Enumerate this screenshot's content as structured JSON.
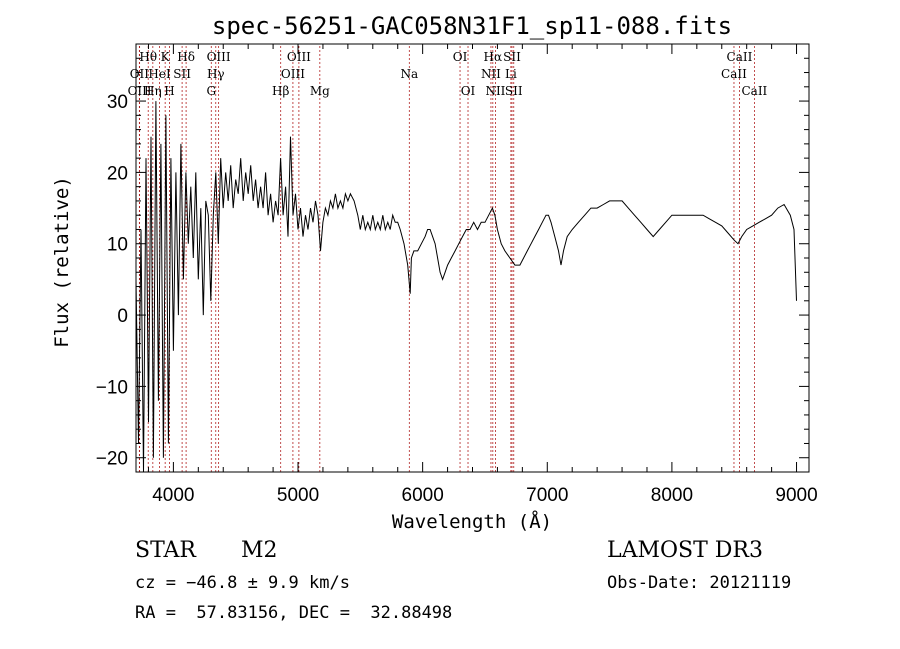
{
  "chart_data": {
    "type": "line",
    "title": "spec-56251-GAC058N31F1_sp11-088.fits",
    "xlabel": "Wavelength (Å)",
    "ylabel": "Flux (relative)",
    "xlim": [
      3700,
      9100
    ],
    "ylim": [
      -22,
      38
    ],
    "xticks": [
      4000,
      5000,
      6000,
      7000,
      8000,
      9000
    ],
    "yticks": [
      -20,
      -10,
      0,
      10,
      20,
      30
    ],
    "line_color": "#000000",
    "marker_color": "#b22222",
    "lines": [
      {
        "label": "Hθ",
        "x": 3798,
        "row": 0
      },
      {
        "label": "OII",
        "x": 3727,
        "row": 1
      },
      {
        "label": "OIII",
        "x": 3729,
        "row": 2
      },
      {
        "label": "K",
        "x": 3934,
        "row": 0
      },
      {
        "label": "HeI",
        "x": 3889,
        "row": 1
      },
      {
        "label": "Hη",
        "x": 3835,
        "row": 2
      },
      {
        "label": "H",
        "x": 3969,
        "row": 2
      },
      {
        "label": "SII",
        "x": 4070,
        "row": 1
      },
      {
        "label": "Hδ",
        "x": 4102,
        "row": 0
      },
      {
        "label": "OIII",
        "x": 4363,
        "row": 0
      },
      {
        "label": "Hγ",
        "x": 4340,
        "row": 1
      },
      {
        "label": "G",
        "x": 4304,
        "row": 2
      },
      {
        "label": "Hβ",
        "x": 4861,
        "row": 2
      },
      {
        "label": "OIII",
        "x": 5007,
        "row": 0
      },
      {
        "label": "OIII",
        "x": 4959,
        "row": 1
      },
      {
        "label": "Mg",
        "x": 5175,
        "row": 2
      },
      {
        "label": "Na",
        "x": 5893,
        "row": 1
      },
      {
        "label": "OI",
        "x": 6300,
        "row": 0
      },
      {
        "label": "OI",
        "x": 6364,
        "row": 2
      },
      {
        "label": "Hα",
        "x": 6563,
        "row": 0
      },
      {
        "label": "NII",
        "x": 6548,
        "row": 1
      },
      {
        "label": "NII",
        "x": 6584,
        "row": 2
      },
      {
        "label": "SII",
        "x": 6717,
        "row": 0
      },
      {
        "label": "Li",
        "x": 6708,
        "row": 1
      },
      {
        "label": "SII",
        "x": 6731,
        "row": 2
      },
      {
        "label": "CaII",
        "x": 8542,
        "row": 0
      },
      {
        "label": "CaII",
        "x": 8498,
        "row": 1
      },
      {
        "label": "CaII",
        "x": 8662,
        "row": 2
      }
    ],
    "spectrum": [
      [
        3700,
        5
      ],
      [
        3720,
        -18
      ],
      [
        3740,
        12
      ],
      [
        3760,
        -22
      ],
      [
        3780,
        22
      ],
      [
        3800,
        -15
      ],
      [
        3820,
        25
      ],
      [
        3840,
        -20
      ],
      [
        3860,
        30
      ],
      [
        3880,
        -12
      ],
      [
        3900,
        24
      ],
      [
        3920,
        -20
      ],
      [
        3940,
        28
      ],
      [
        3960,
        -18
      ],
      [
        3980,
        22
      ],
      [
        4000,
        -5
      ],
      [
        4020,
        20
      ],
      [
        4040,
        0
      ],
      [
        4060,
        24
      ],
      [
        4080,
        5
      ],
      [
        4100,
        20
      ],
      [
        4120,
        10
      ],
      [
        4140,
        18
      ],
      [
        4160,
        8
      ],
      [
        4180,
        20
      ],
      [
        4200,
        5
      ],
      [
        4220,
        15
      ],
      [
        4240,
        0
      ],
      [
        4260,
        16
      ],
      [
        4280,
        14
      ],
      [
        4300,
        2
      ],
      [
        4320,
        14
      ],
      [
        4340,
        20
      ],
      [
        4360,
        10
      ],
      [
        4380,
        22
      ],
      [
        4400,
        15
      ],
      [
        4420,
        20
      ],
      [
        4440,
        16
      ],
      [
        4460,
        21
      ],
      [
        4480,
        15
      ],
      [
        4500,
        19
      ],
      [
        4520,
        17
      ],
      [
        4540,
        22
      ],
      [
        4560,
        16
      ],
      [
        4580,
        20
      ],
      [
        4600,
        17
      ],
      [
        4620,
        21
      ],
      [
        4640,
        16
      ],
      [
        4660,
        19
      ],
      [
        4680,
        15
      ],
      [
        4700,
        18
      ],
      [
        4720,
        15
      ],
      [
        4740,
        20
      ],
      [
        4760,
        14
      ],
      [
        4780,
        17
      ],
      [
        4800,
        13
      ],
      [
        4820,
        16
      ],
      [
        4840,
        14
      ],
      [
        4860,
        22
      ],
      [
        4880,
        14
      ],
      [
        4900,
        18
      ],
      [
        4920,
        11
      ],
      [
        4940,
        25
      ],
      [
        4960,
        14
      ],
      [
        4980,
        17
      ],
      [
        5000,
        12
      ],
      [
        5020,
        15
      ],
      [
        5040,
        11
      ],
      [
        5060,
        14
      ],
      [
        5080,
        12
      ],
      [
        5100,
        15
      ],
      [
        5120,
        13
      ],
      [
        5140,
        16
      ],
      [
        5160,
        14
      ],
      [
        5180,
        9
      ],
      [
        5200,
        13
      ],
      [
        5220,
        15
      ],
      [
        5240,
        14
      ],
      [
        5260,
        16
      ],
      [
        5280,
        15
      ],
      [
        5300,
        17
      ],
      [
        5320,
        15
      ],
      [
        5340,
        16
      ],
      [
        5360,
        15
      ],
      [
        5380,
        17
      ],
      [
        5400,
        16
      ],
      [
        5420,
        17
      ],
      [
        5450,
        16
      ],
      [
        5480,
        14
      ],
      [
        5500,
        12
      ],
      [
        5520,
        14
      ],
      [
        5540,
        12
      ],
      [
        5560,
        13
      ],
      [
        5580,
        12
      ],
      [
        5600,
        14
      ],
      [
        5620,
        12
      ],
      [
        5640,
        13
      ],
      [
        5660,
        12
      ],
      [
        5680,
        14
      ],
      [
        5700,
        12
      ],
      [
        5720,
        13
      ],
      [
        5740,
        12
      ],
      [
        5760,
        14
      ],
      [
        5780,
        13
      ],
      [
        5800,
        13
      ],
      [
        5820,
        12
      ],
      [
        5850,
        10
      ],
      [
        5880,
        7
      ],
      [
        5900,
        3
      ],
      [
        5910,
        8
      ],
      [
        5930,
        9
      ],
      [
        5960,
        9
      ],
      [
        5990,
        10
      ],
      [
        6020,
        11
      ],
      [
        6040,
        12
      ],
      [
        6060,
        12
      ],
      [
        6080,
        11
      ],
      [
        6100,
        10
      ],
      [
        6120,
        8
      ],
      [
        6140,
        6
      ],
      [
        6160,
        5
      ],
      [
        6180,
        6
      ],
      [
        6200,
        7
      ],
      [
        6230,
        8
      ],
      [
        6260,
        9
      ],
      [
        6290,
        10
      ],
      [
        6320,
        11
      ],
      [
        6350,
        12
      ],
      [
        6380,
        12
      ],
      [
        6410,
        13
      ],
      [
        6440,
        12
      ],
      [
        6470,
        13
      ],
      [
        6500,
        13
      ],
      [
        6530,
        14
      ],
      [
        6560,
        15
      ],
      [
        6580,
        14
      ],
      [
        6600,
        12
      ],
      [
        6630,
        10
      ],
      [
        6660,
        9
      ],
      [
        6700,
        8
      ],
      [
        6740,
        7
      ],
      [
        6780,
        7
      ],
      [
        6810,
        8
      ],
      [
        6840,
        9
      ],
      [
        6870,
        10
      ],
      [
        6900,
        11
      ],
      [
        6930,
        12
      ],
      [
        6960,
        13
      ],
      [
        6990,
        14
      ],
      [
        7010,
        14
      ],
      [
        7030,
        13
      ],
      [
        7060,
        11
      ],
      [
        7090,
        9
      ],
      [
        7110,
        7
      ],
      [
        7130,
        9
      ],
      [
        7160,
        11
      ],
      [
        7200,
        12
      ],
      [
        7250,
        13
      ],
      [
        7300,
        14
      ],
      [
        7350,
        15
      ],
      [
        7400,
        15
      ],
      [
        7450,
        15.5
      ],
      [
        7500,
        16
      ],
      [
        7550,
        16
      ],
      [
        7600,
        16
      ],
      [
        7650,
        15
      ],
      [
        7700,
        14
      ],
      [
        7750,
        13
      ],
      [
        7800,
        12
      ],
      [
        7850,
        11
      ],
      [
        7900,
        12
      ],
      [
        7950,
        13
      ],
      [
        8000,
        14
      ],
      [
        8050,
        14
      ],
      [
        8100,
        14
      ],
      [
        8150,
        14
      ],
      [
        8200,
        14
      ],
      [
        8250,
        14
      ],
      [
        8300,
        13.5
      ],
      [
        8350,
        13
      ],
      [
        8400,
        12.5
      ],
      [
        8450,
        11.5
      ],
      [
        8500,
        10.5
      ],
      [
        8530,
        10
      ],
      [
        8560,
        11
      ],
      [
        8600,
        12
      ],
      [
        8650,
        12.5
      ],
      [
        8700,
        13
      ],
      [
        8750,
        13.5
      ],
      [
        8800,
        14
      ],
      [
        8850,
        15
      ],
      [
        8900,
        15.5
      ],
      [
        8950,
        14
      ],
      [
        8980,
        12
      ],
      [
        9000,
        2
      ]
    ]
  },
  "info": {
    "object_class": "STAR",
    "subclass": "M2",
    "survey": "LAMOST DR3",
    "cz": "cz = −46.8 ± 9.9 km/s",
    "obs_date": "Obs-Date: 20121119",
    "coords": "RA =  57.83156, DEC =  32.88498"
  }
}
